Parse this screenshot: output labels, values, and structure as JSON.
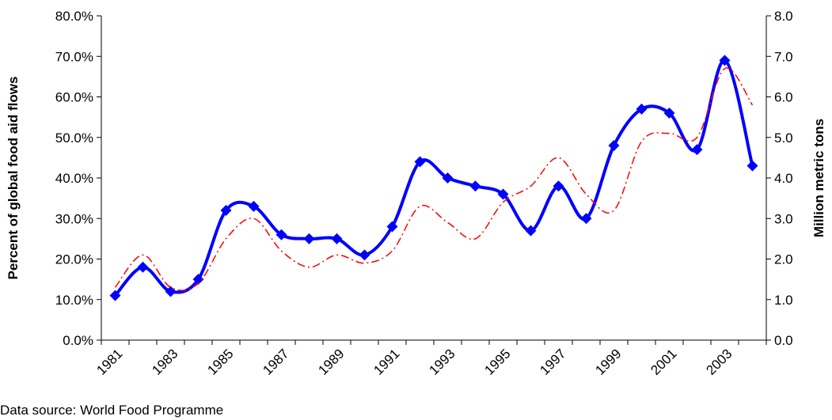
{
  "chart_data": {
    "type": "line",
    "y_label": "Percent of global food aid flows",
    "y2_label": "Million metric tons",
    "source": "Data source: World Food Programme",
    "categories": [
      "1981",
      null,
      "1983",
      null,
      "1985",
      null,
      "1987",
      null,
      "1989",
      null,
      "1991",
      null,
      "1993",
      null,
      "1995",
      null,
      "1997",
      null,
      "1999",
      null,
      "2001",
      null,
      "2003",
      null
    ],
    "series": [
      {
        "color": "#0000ff",
        "values": [
          11,
          18,
          12,
          15,
          32,
          33,
          26,
          25,
          25,
          21,
          28,
          44,
          40,
          38,
          36,
          27,
          38,
          30,
          48,
          57,
          56,
          47,
          69,
          43
        ]
      },
      {
        "color": "#ff0000",
        "axis": "y2",
        "values": [
          1.3,
          2.1,
          1.3,
          1.4,
          2.5,
          3.0,
          2.2,
          1.8,
          2.1,
          1.9,
          2.2,
          3.3,
          2.9,
          2.5,
          3.4,
          3.8,
          4.5,
          3.6,
          3.2,
          4.9,
          5.1,
          5.0,
          6.7,
          5.8
        ]
      }
    ],
    "ylim": [
      0,
      80
    ],
    "yticks": [
      {
        "value": 0,
        "label": "0.0%"
      },
      {
        "value": 10,
        "label": "10.0%"
      },
      {
        "value": 20,
        "label": "20.0%"
      },
      {
        "value": 30,
        "label": "30.0%"
      },
      {
        "value": 40,
        "label": "40.0%"
      },
      {
        "value": 50,
        "label": "50.0%"
      },
      {
        "value": 60,
        "label": "60.0%"
      },
      {
        "value": 70,
        "label": "70.0%"
      },
      {
        "value": 80,
        "label": "80.0%"
      }
    ],
    "y2lim": [
      0,
      8
    ],
    "y2ticks": [
      {
        "value": 0,
        "label": "0.0"
      },
      {
        "value": 1,
        "label": "1.0"
      },
      {
        "value": 2,
        "label": "2.0"
      },
      {
        "value": 3,
        "label": "3.0"
      },
      {
        "value": 4,
        "label": "4.0"
      },
      {
        "value": 5,
        "label": "5.0"
      },
      {
        "value": 6,
        "label": "6.0"
      },
      {
        "value": 7,
        "label": "7.0"
      },
      {
        "value": 8,
        "label": "8.0"
      }
    ]
  }
}
